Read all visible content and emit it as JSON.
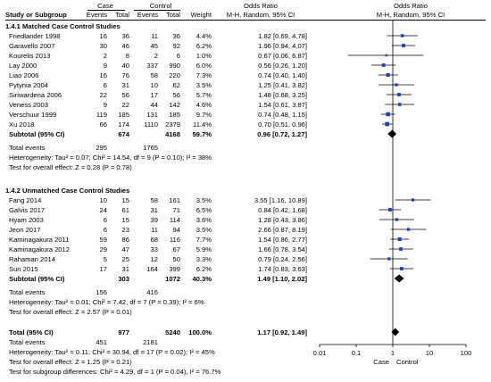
{
  "header": {
    "case": "Case",
    "control": "Control",
    "odds_ratio_text": "Odds Ratio",
    "odds_ratio_plot": "Odds Ratio",
    "study": "Study or Subgroup",
    "events1": "Events",
    "total1": "Total",
    "events2": "Events",
    "total2": "Total",
    "weight": "Weight",
    "method_text": "M-H, Random, 95% CI",
    "method_plot": "M-H, Random, 95% CI"
  },
  "groups": [
    {
      "title": "1.4.1 Matched Case Control Studies",
      "studies": [
        {
          "name": "Friedlander 1998",
          "e1": "16",
          "t1": "36",
          "e2": "11",
          "t2": "36",
          "weight": "4.4%",
          "ci": "1.82 [0.69, 4.78]"
        },
        {
          "name": "Garavello 2007",
          "e1": "30",
          "t1": "46",
          "e2": "45",
          "t2": "92",
          "weight": "6.2%",
          "ci": "1.96 [0.94, 4.07]"
        },
        {
          "name": "Kourelis 2013",
          "e1": "2",
          "t1": "8",
          "e2": "2",
          "t2": "6",
          "weight": "1.0%",
          "ci": "0.67 [0.06, 6.87]"
        },
        {
          "name": "Lay 2000",
          "e1": "9",
          "t1": "40",
          "e2": "337",
          "t2": "990",
          "weight": "6.0%",
          "ci": "0.56 [0.26, 1.20]"
        },
        {
          "name": "Liao 2006",
          "e1": "16",
          "t1": "76",
          "e2": "58",
          "t2": "220",
          "weight": "7.3%",
          "ci": "0.74 [0.40, 1.40]"
        },
        {
          "name": "Pytynia 2004",
          "e1": "6",
          "t1": "31",
          "e2": "10",
          "t2": "62",
          "weight": "3.5%",
          "ci": "1.25 [0.41, 3.82]"
        },
        {
          "name": "Siriwardena 2006",
          "e1": "22",
          "t1": "56",
          "e2": "17",
          "t2": "56",
          "weight": "5.7%",
          "ci": "1.48 [0.68, 3.25]"
        },
        {
          "name": "Veness 2003",
          "e1": "9",
          "t1": "22",
          "e2": "44",
          "t2": "142",
          "weight": "4.6%",
          "ci": "1.54 [0.61, 3.87]"
        },
        {
          "name": "Verschuur 1999",
          "e1": "119",
          "t1": "185",
          "e2": "131",
          "t2": "185",
          "weight": "9.7%",
          "ci": "0.74 [0.48, 1.15]"
        },
        {
          "name": "Xu 2018",
          "e1": "66",
          "t1": "174",
          "e2": "1110",
          "t2": "2379",
          "weight": "11.4%",
          "ci": "0.70 [0.51, 0.96]"
        }
      ],
      "subtotal": {
        "label": "Subtotal (95% CI)",
        "t1": "674",
        "t2": "4168",
        "weight": "59.7%",
        "ci": "0.96 [0.72, 1.27]"
      },
      "total_events": {
        "label": "Total events",
        "e1": "295",
        "e2": "1765"
      },
      "heterogeneity": "Heterogeneity: Tau² = 0.07; Chi² = 14.54, df = 9 (P = 0.10); I² = 38%",
      "overall": "Test for overall effect: Z = 0.28 (P = 0.78)"
    },
    {
      "title": "1.4.2 Unmatched Case Control Studies",
      "studies": [
        {
          "name": "Fang 2014",
          "e1": "10",
          "t1": "15",
          "e2": "58",
          "t2": "161",
          "weight": "3.5%",
          "ci": "3.55 [1.16, 10.89]"
        },
        {
          "name": "Galvis 2017",
          "e1": "24",
          "t1": "61",
          "e2": "31",
          "t2": "71",
          "weight": "6.5%",
          "ci": "0.84 [0.42, 1.68]"
        },
        {
          "name": "Hyam 2003",
          "e1": "6",
          "t1": "15",
          "e2": "39",
          "t2": "114",
          "weight": "3.6%",
          "ci": "1.28 [0.43, 3.86]"
        },
        {
          "name": "Jeon 2017",
          "e1": "6",
          "t1": "23",
          "e2": "11",
          "t2": "94",
          "weight": "3.5%",
          "ci": "2.66 [0.87, 8.19]"
        },
        {
          "name": "Kaminagakura 2011",
          "e1": "59",
          "t1": "86",
          "e2": "68",
          "t2": "116",
          "weight": "7.7%",
          "ci": "1.54 [0.86, 2.77]"
        },
        {
          "name": "Kaminagakura 2012",
          "e1": "29",
          "t1": "47",
          "e2": "33",
          "t2": "67",
          "weight": "5.9%",
          "ci": "1.66 [0.78, 3.54]"
        },
        {
          "name": "Rahaman 2014",
          "e1": "5",
          "t1": "25",
          "e2": "12",
          "t2": "50",
          "weight": "3.3%",
          "ci": "0.79 [0.24, 2.56]"
        },
        {
          "name": "Sun 2015",
          "e1": "17",
          "t1": "31",
          "e2": "164",
          "t2": "399",
          "weight": "6.2%",
          "ci": "1.74 [0.83, 3.63]"
        }
      ],
      "subtotal": {
        "label": "Subtotal (95% CI)",
        "t1": "303",
        "t2": "1072",
        "weight": "40.3%",
        "ci": "1.49 [1.10, 2.02]"
      },
      "total_events": {
        "label": "Total events",
        "e1": "156",
        "e2": "416"
      },
      "heterogeneity": "Heterogeneity: Tau² = 0.01; Chi² = 7.42, df = 7 (P = 0.39); I² = 6%",
      "overall": "Test for overall effect: Z = 2.57 (P = 0.01)"
    }
  ],
  "total": {
    "label": "Total (95% CI)",
    "t1": "977",
    "t2": "5240",
    "weight": "100.0%",
    "ci": "1.17 [0.92, 1.49]",
    "events_label": "Total events",
    "e1": "451",
    "e2": "2181",
    "heterogeneity": "Heterogeneity: Tau² = 0.11; Chi² = 30.94, df = 17 (P = 0.02); I² = 45%",
    "overall": "Test for overall effect: Z = 1.25 (P = 0.21)",
    "subgroup": "Test for subgroup differences: Chi² = 4.29, df = 1 (P = 0.04), I² = 76.7%"
  },
  "chart_data": {
    "type": "forest",
    "scale": "log",
    "xlim": [
      0.01,
      100
    ],
    "ticks": [
      0.01,
      0.1,
      1,
      10,
      100
    ],
    "tick_labels": [
      "0.01",
      "0.1",
      "1",
      "10",
      "100"
    ],
    "left_label": "Case",
    "right_label": "Control",
    "marker_color": "#1f3fbf",
    "diamond_color": "#000000",
    "groups": [
      {
        "studies": [
          {
            "or": 1.82,
            "lo": 0.69,
            "hi": 4.78,
            "w": 4.4
          },
          {
            "or": 1.96,
            "lo": 0.94,
            "hi": 4.07,
            "w": 6.2
          },
          {
            "or": 0.67,
            "lo": 0.06,
            "hi": 6.87,
            "w": 1.0
          },
          {
            "or": 0.56,
            "lo": 0.26,
            "hi": 1.2,
            "w": 6.0
          },
          {
            "or": 0.74,
            "lo": 0.4,
            "hi": 1.4,
            "w": 7.3
          },
          {
            "or": 1.25,
            "lo": 0.41,
            "hi": 3.82,
            "w": 3.5
          },
          {
            "or": 1.48,
            "lo": 0.68,
            "hi": 3.25,
            "w": 5.7
          },
          {
            "or": 1.54,
            "lo": 0.61,
            "hi": 3.87,
            "w": 4.6
          },
          {
            "or": 0.74,
            "lo": 0.48,
            "hi": 1.15,
            "w": 9.7
          },
          {
            "or": 0.7,
            "lo": 0.51,
            "hi": 0.96,
            "w": 11.4
          }
        ],
        "subtotal": {
          "or": 0.96,
          "lo": 0.72,
          "hi": 1.27
        }
      },
      {
        "studies": [
          {
            "or": 3.55,
            "lo": 1.16,
            "hi": 10.89,
            "w": 3.5
          },
          {
            "or": 0.84,
            "lo": 0.42,
            "hi": 1.68,
            "w": 6.5
          },
          {
            "or": 1.28,
            "lo": 0.43,
            "hi": 3.86,
            "w": 3.6
          },
          {
            "or": 2.66,
            "lo": 0.87,
            "hi": 8.19,
            "w": 3.5
          },
          {
            "or": 1.54,
            "lo": 0.86,
            "hi": 2.77,
            "w": 7.7
          },
          {
            "or": 1.66,
            "lo": 0.78,
            "hi": 3.54,
            "w": 5.9
          },
          {
            "or": 0.79,
            "lo": 0.24,
            "hi": 2.56,
            "w": 3.3
          },
          {
            "or": 1.74,
            "lo": 0.83,
            "hi": 3.63,
            "w": 6.2
          }
        ],
        "subtotal": {
          "or": 1.49,
          "lo": 1.1,
          "hi": 2.02
        }
      }
    ],
    "total": {
      "or": 1.17,
      "lo": 0.92,
      "hi": 1.49
    }
  }
}
